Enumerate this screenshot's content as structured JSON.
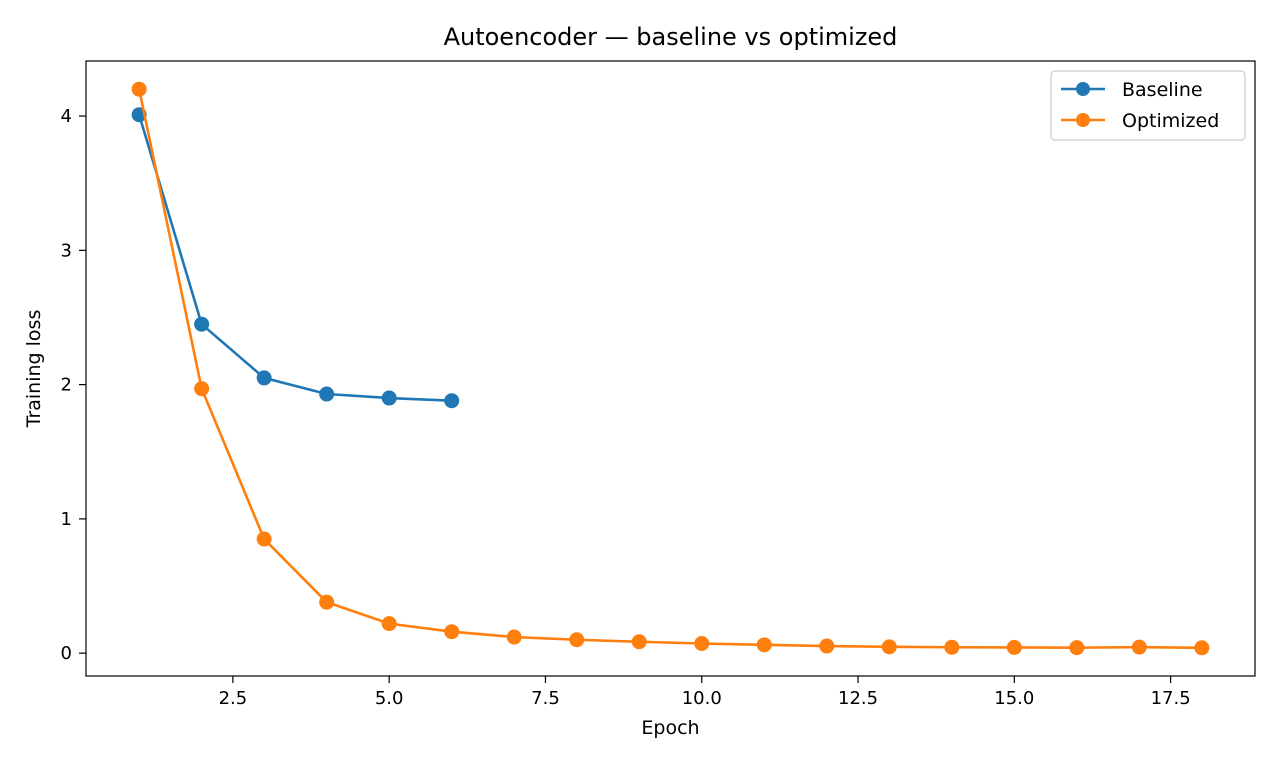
{
  "chart_data": {
    "type": "line",
    "title": "Autoencoder — baseline vs optimized",
    "xlabel": "Epoch",
    "ylabel": "Training loss",
    "xlim": [
      0.15,
      18.85
    ],
    "ylim": [
      -0.17,
      4.41
    ],
    "xticks": [
      2.5,
      5.0,
      7.5,
      10.0,
      12.5,
      15.0,
      17.5
    ],
    "xtick_labels": [
      "2.5",
      "5.0",
      "7.5",
      "10.0",
      "12.5",
      "15.0",
      "17.5"
    ],
    "yticks": [
      0,
      1,
      2,
      3,
      4
    ],
    "ytick_labels": [
      "0",
      "1",
      "2",
      "3",
      "4"
    ],
    "grid": false,
    "legend_position": "top-right",
    "series": [
      {
        "name": "Baseline",
        "color": "#1f77b4",
        "marker": "circle",
        "x": [
          1,
          2,
          3,
          4,
          5,
          6
        ],
        "y": [
          4.01,
          2.45,
          2.05,
          1.93,
          1.9,
          1.88
        ]
      },
      {
        "name": "Optimized",
        "color": "#ff7f0e",
        "marker": "circle",
        "x": [
          1,
          2,
          3,
          4,
          5,
          6,
          7,
          8,
          9,
          10,
          11,
          12,
          13,
          14,
          15,
          16,
          17,
          18
        ],
        "y": [
          4.2,
          1.97,
          0.85,
          0.38,
          0.22,
          0.16,
          0.12,
          0.1,
          0.085,
          0.072,
          0.062,
          0.053,
          0.047,
          0.044,
          0.043,
          0.041,
          0.045,
          0.04
        ]
      }
    ]
  }
}
